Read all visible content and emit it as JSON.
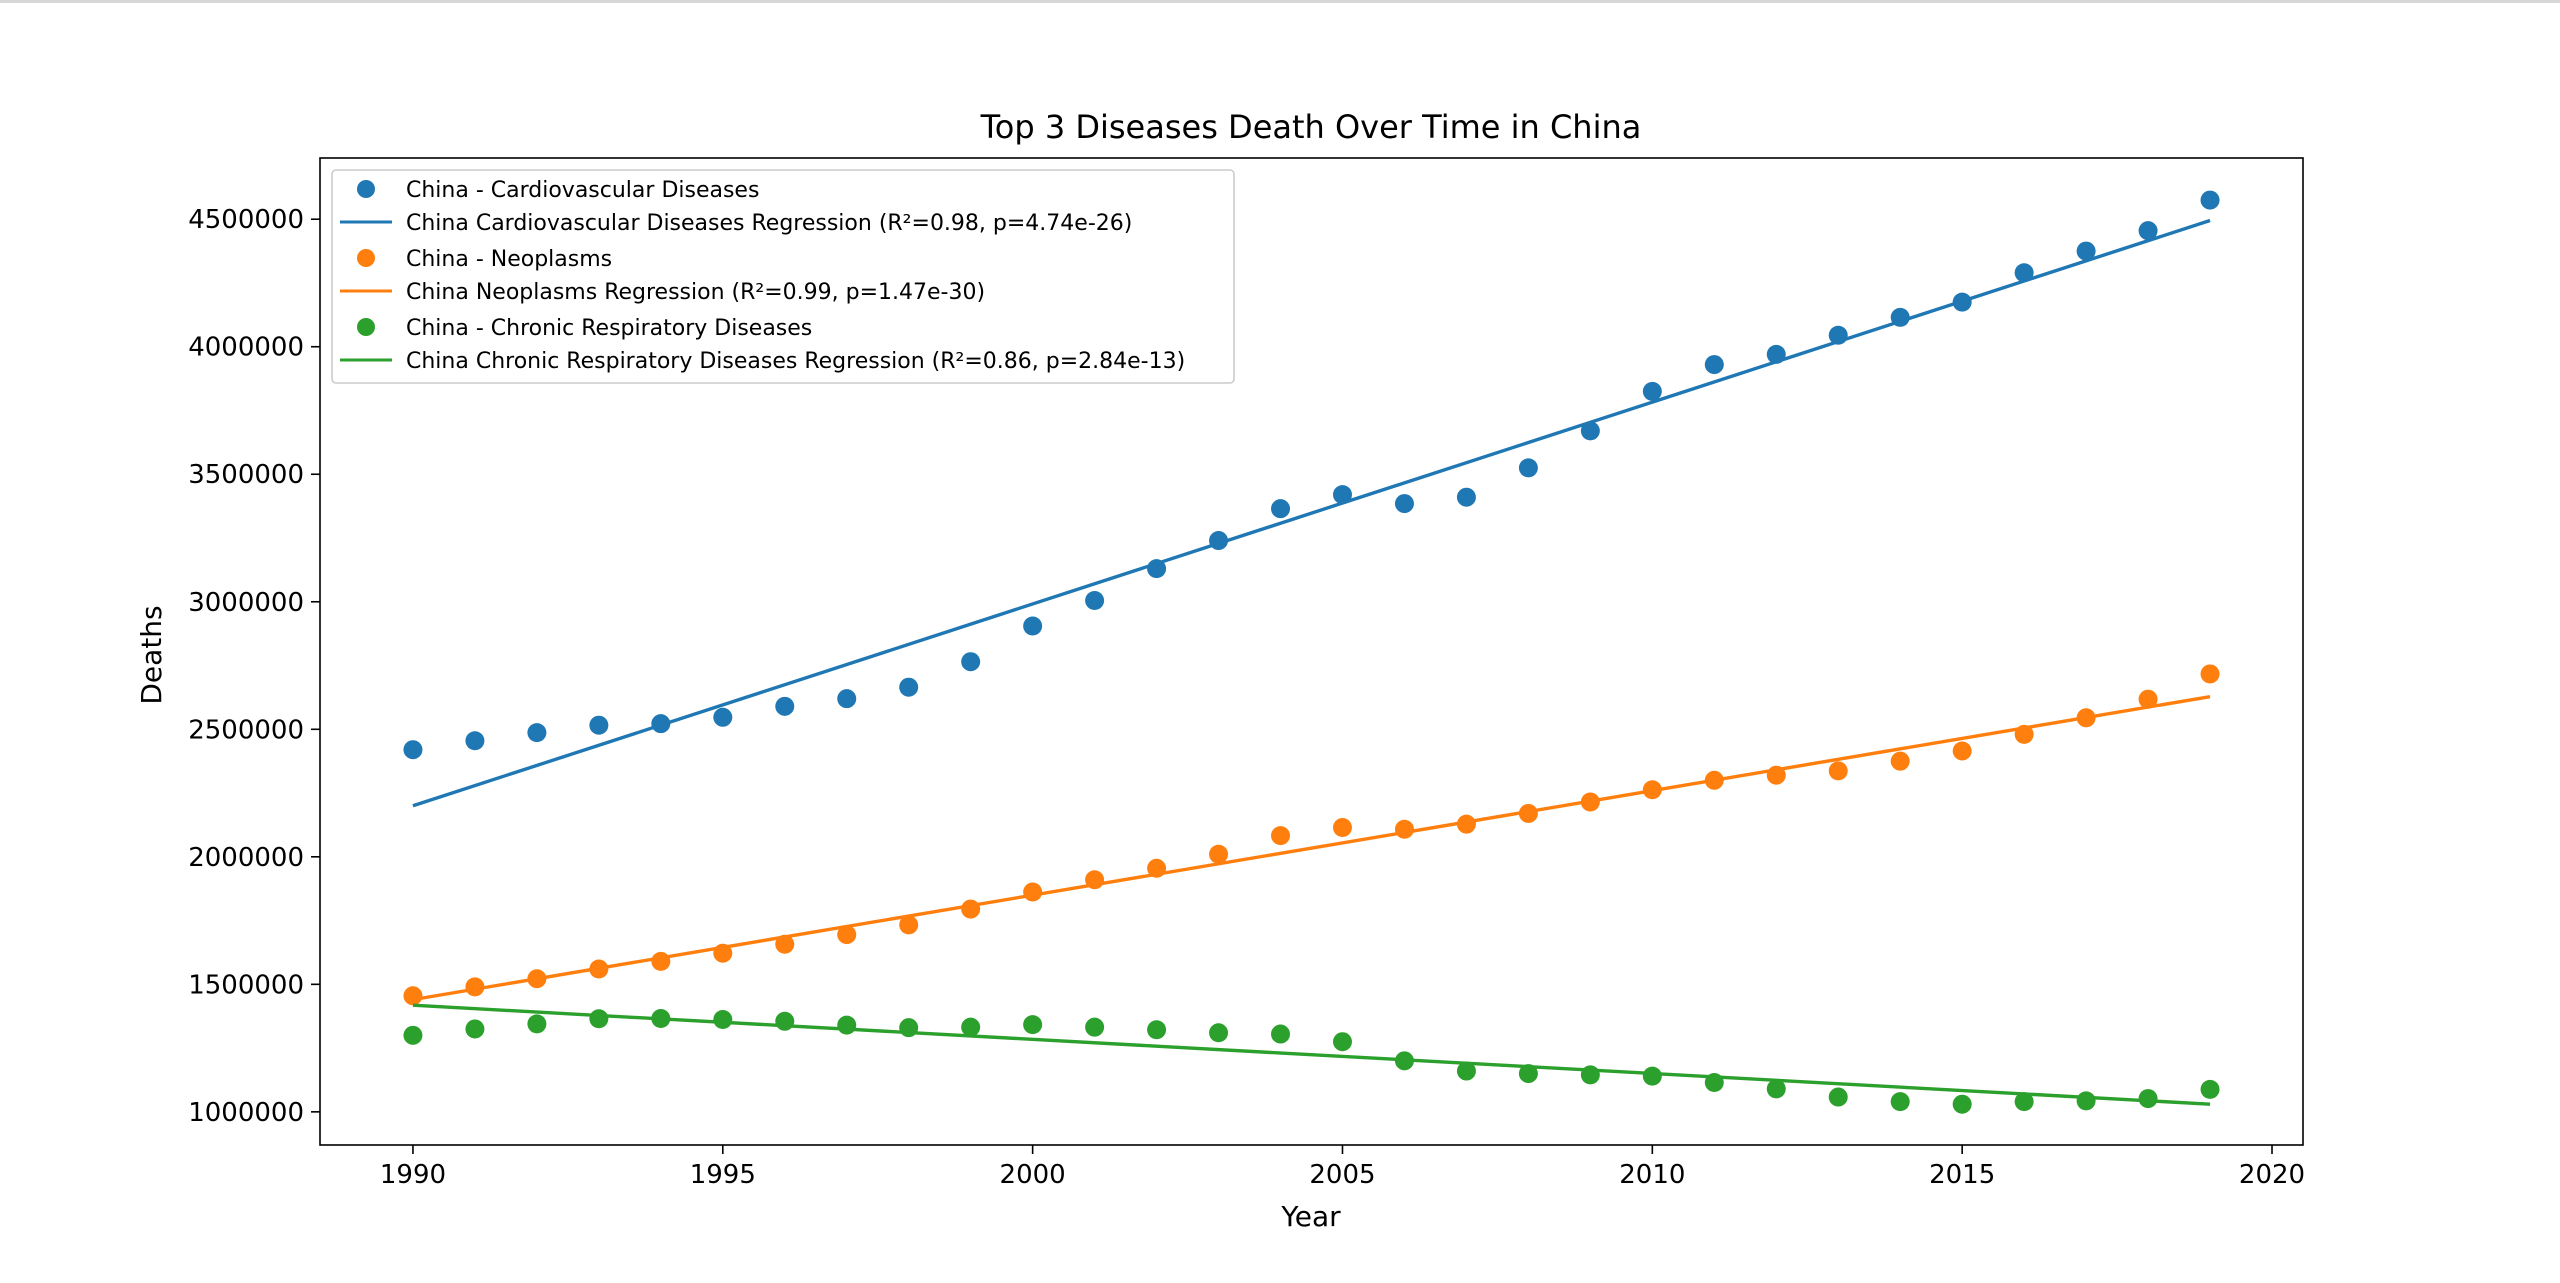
{
  "colors": {
    "cardio": "#1f77b4",
    "neo": "#ff7f0e",
    "resp": "#2ca02c",
    "axis": "#000000",
    "background": "#ffffff"
  },
  "chart_data": {
    "type": "scatter",
    "title": "Top 3 Diseases Death Over Time in China",
    "xlabel": "Year",
    "ylabel": "Deaths",
    "xlim": [
      1988.5,
      2020.5
    ],
    "ylim": [
      870000,
      4740000
    ],
    "xticks": [
      1990,
      1995,
      2000,
      2005,
      2010,
      2015,
      2020
    ],
    "yticks": [
      1000000,
      1500000,
      2000000,
      2500000,
      3000000,
      3500000,
      4000000,
      4500000
    ],
    "grid": false,
    "legend_position": "top-left",
    "x": [
      1990,
      1991,
      1992,
      1993,
      1994,
      1995,
      1996,
      1997,
      1998,
      1999,
      2000,
      2001,
      2002,
      2003,
      2004,
      2005,
      2006,
      2007,
      2008,
      2009,
      2010,
      2011,
      2012,
      2013,
      2014,
      2015,
      2016,
      2017,
      2018,
      2019
    ],
    "series": [
      {
        "key": "cardio",
        "name": "China - Cardiovascular Diseases",
        "regression_name": "China Cardiovascular Diseases Regression (R²=0.98, p=4.74e-26)",
        "values": [
          2420000,
          2455000,
          2487000,
          2516000,
          2522000,
          2547000,
          2590000,
          2620000,
          2665000,
          2765000,
          2905000,
          3005000,
          3130000,
          3240000,
          3365000,
          3420000,
          3385000,
          3410000,
          3525000,
          3670000,
          3825000,
          3930000,
          3970000,
          4045000,
          4115000,
          4175000,
          4290000,
          4375000,
          4455000,
          4575000
        ],
        "regression": {
          "start": [
            1990,
            2200000
          ],
          "end": [
            2019,
            4495000
          ]
        }
      },
      {
        "key": "neo",
        "name": "China - Neoplasms",
        "regression_name": "China Neoplasms Regression (R²=0.99, p=1.47e-30)",
        "values": [
          1455000,
          1490000,
          1522000,
          1560000,
          1590000,
          1622000,
          1657000,
          1695000,
          1733000,
          1795000,
          1862000,
          1910000,
          1955000,
          2010000,
          2083000,
          2115000,
          2108000,
          2128000,
          2170000,
          2215000,
          2263000,
          2300000,
          2320000,
          2337000,
          2375000,
          2415000,
          2480000,
          2545000,
          2618000,
          2717000
        ],
        "regression": {
          "start": [
            1990,
            1440000
          ],
          "end": [
            2019,
            2628000
          ]
        }
      },
      {
        "key": "resp",
        "name": "China - Chronic Respiratory Diseases",
        "regression_name": "China Chronic Respiratory Diseases Regression (R²=0.86, p=2.84e-13)",
        "values": [
          1300000,
          1325000,
          1345000,
          1365000,
          1366000,
          1362000,
          1355000,
          1340000,
          1330000,
          1332000,
          1342000,
          1332000,
          1322000,
          1310000,
          1305000,
          1275000,
          1200000,
          1160000,
          1150000,
          1145000,
          1140000,
          1115000,
          1090000,
          1058000,
          1040000,
          1030000,
          1040000,
          1043000,
          1052000,
          1088000
        ],
        "regression": {
          "start": [
            1990,
            1418000
          ],
          "end": [
            2019,
            1030000
          ]
        }
      }
    ]
  }
}
